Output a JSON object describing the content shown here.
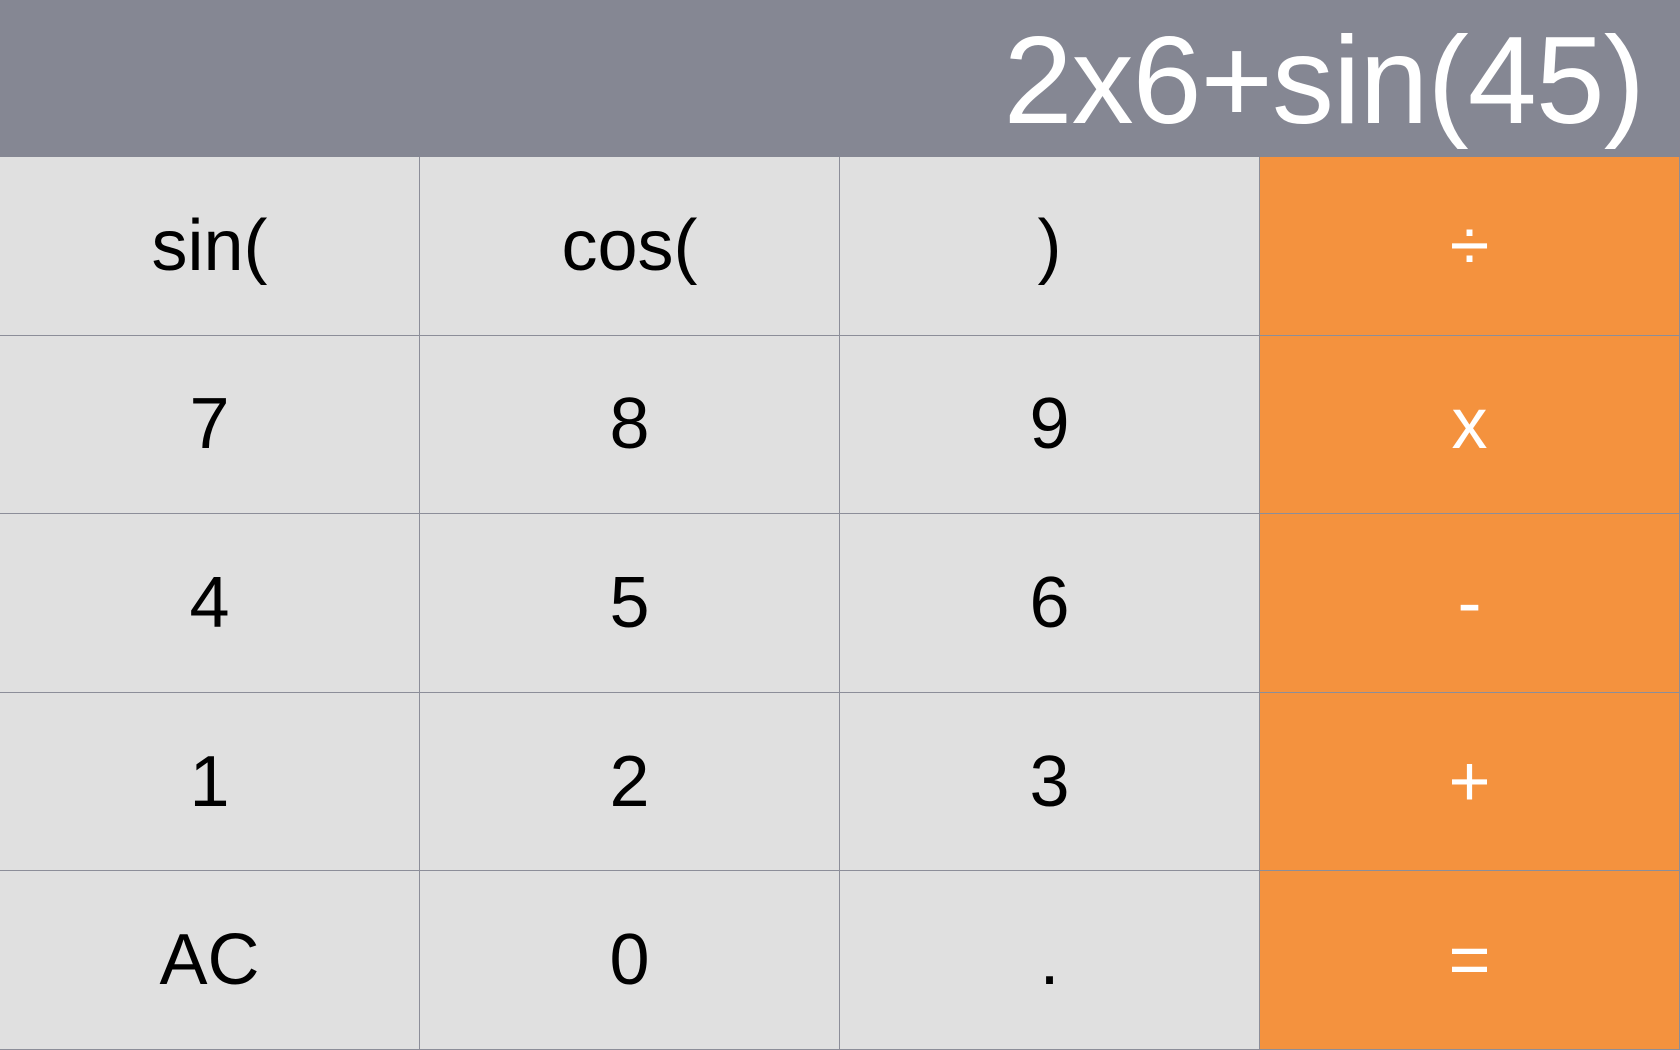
{
  "display": {
    "expression": "2x6+sin(45)"
  },
  "colors": {
    "display_background": "#858793",
    "key_background": "#e0e0e0",
    "operator_background": "#f4923e",
    "operator_text": "#ffffff",
    "key_text": "#000000"
  },
  "keypad": {
    "rows": [
      [
        "sin(",
        "cos(",
        ")",
        "÷"
      ],
      [
        "7",
        "8",
        "9",
        "x"
      ],
      [
        "4",
        "5",
        "6",
        "-"
      ],
      [
        "1",
        "2",
        "3",
        "+"
      ],
      [
        "AC",
        "0",
        ".",
        "="
      ]
    ]
  }
}
